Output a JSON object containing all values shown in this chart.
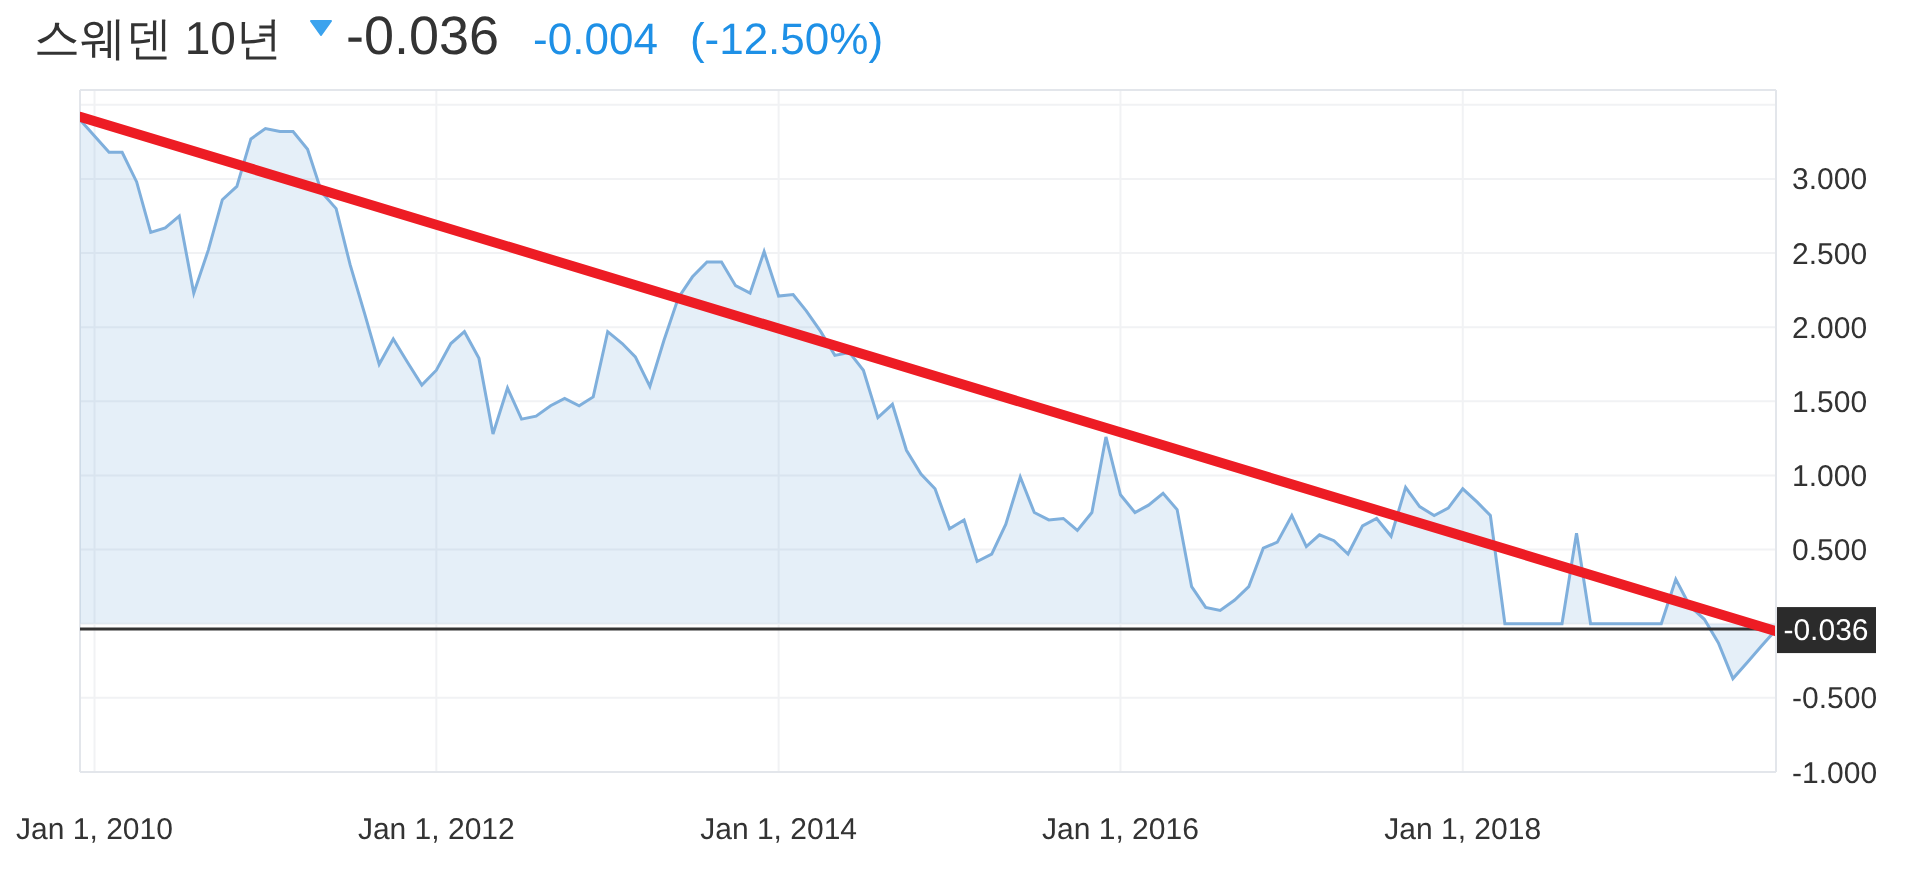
{
  "chart_data": {
    "type": "area",
    "title": "스웨덴 10년",
    "annotations": [
      "-0.036",
      "-0.004",
      "(-12.50%)"
    ],
    "x": [
      "2009-12",
      "2010-01",
      "2010-02",
      "2010-03",
      "2010-04",
      "2010-05",
      "2010-06",
      "2010-07",
      "2010-08",
      "2010-09",
      "2010-10",
      "2010-11",
      "2010-12",
      "2011-01",
      "2011-02",
      "2011-03",
      "2011-04",
      "2011-05",
      "2011-06",
      "2011-07",
      "2011-08",
      "2011-09",
      "2011-10",
      "2011-11",
      "2011-12",
      "2012-01",
      "2012-02",
      "2012-03",
      "2012-04",
      "2012-05",
      "2012-06",
      "2012-07",
      "2012-08",
      "2012-09",
      "2012-10",
      "2012-11",
      "2012-12",
      "2013-01",
      "2013-02",
      "2013-03",
      "2013-04",
      "2013-05",
      "2013-06",
      "2013-07",
      "2013-08",
      "2013-09",
      "2013-10",
      "2013-11",
      "2013-12",
      "2014-01",
      "2014-02",
      "2014-03",
      "2014-04",
      "2014-05",
      "2014-06",
      "2014-07",
      "2014-08",
      "2014-09",
      "2014-10",
      "2014-11",
      "2014-12",
      "2015-01",
      "2015-02",
      "2015-03",
      "2015-04",
      "2015-05",
      "2015-06",
      "2015-07",
      "2015-08",
      "2015-09",
      "2015-10",
      "2015-11",
      "2015-12",
      "2016-01",
      "2016-02",
      "2016-03",
      "2016-04",
      "2016-05",
      "2016-06",
      "2016-07",
      "2016-08",
      "2016-09",
      "2016-10",
      "2016-11",
      "2016-12",
      "2017-01",
      "2017-02",
      "2017-03",
      "2017-04",
      "2017-05",
      "2017-06",
      "2017-07",
      "2017-08",
      "2017-09",
      "2017-10",
      "2017-11",
      "2017-12",
      "2018-01",
      "2018-02",
      "2018-03",
      "2018-04",
      "2018-05",
      "2018-06",
      "2018-07",
      "2018-08",
      "2018-09",
      "2018-10",
      "2018-11",
      "2018-12",
      "2019-01",
      "2019-02",
      "2019-03",
      "2019-04",
      "2019-05",
      "2019-06",
      "2019-07",
      "2019-08",
      "2019-09",
      "2019-10",
      "2019-11"
    ],
    "xlim": [
      "2009-12",
      "2019-11"
    ],
    "xticks": [
      {
        "value": "2010-01-01",
        "label": "Jan 1, 2010"
      },
      {
        "value": "2012-01-01",
        "label": "Jan 1, 2012"
      },
      {
        "value": "2014-01-01",
        "label": "Jan 1, 2014"
      },
      {
        "value": "2016-01-01",
        "label": "Jan 1, 2016"
      },
      {
        "value": "2018-01-01",
        "label": "Jan 1, 2018"
      }
    ],
    "ylim": [
      -1,
      3.6
    ],
    "yticks": [
      {
        "value": -1,
        "label": "-1.000"
      },
      {
        "value": -0.5,
        "label": "-0.500"
      },
      {
        "value": 0,
        "label": null
      },
      {
        "value": 0.5,
        "label": "0.500"
      },
      {
        "value": 1,
        "label": "1.000"
      },
      {
        "value": 1.5,
        "label": "1.500"
      },
      {
        "value": 2,
        "label": "2.000"
      },
      {
        "value": 2.5,
        "label": "2.500"
      },
      {
        "value": 3,
        "label": "3.000"
      },
      {
        "value": 3.5,
        "label": null
      }
    ],
    "grid": true,
    "series": [
      {
        "color": "#7fafdc",
        "values": [
          3.4,
          3.29,
          3.18,
          3.18,
          2.98,
          2.64,
          2.67,
          2.75,
          2.23,
          2.52,
          2.86,
          2.95,
          3.27,
          3.34,
          3.32,
          3.32,
          3.2,
          2.91,
          2.8,
          2.42,
          2.09,
          1.75,
          1.92,
          1.76,
          1.61,
          1.71,
          1.89,
          1.97,
          1.79,
          1.28,
          1.59,
          1.38,
          1.4,
          1.47,
          1.52,
          1.47,
          1.53,
          1.97,
          1.89,
          1.8,
          1.6,
          1.91,
          2.2,
          2.34,
          2.44,
          2.44,
          2.28,
          2.23,
          2.51,
          2.21,
          2.22,
          2.11,
          1.97,
          1.81,
          1.83,
          1.71,
          1.39,
          1.48,
          1.17,
          1.01,
          0.91,
          0.64,
          0.7,
          0.42,
          0.47,
          0.67,
          0.99,
          0.75,
          0.7,
          0.71,
          0.63,
          0.75,
          1.26,
          0.87,
          0.75,
          0.8,
          0.88,
          0.77,
          0.25,
          0.11,
          0.09,
          0.16,
          0.25,
          0.51,
          0.55,
          0.73,
          0.52,
          0.6,
          0.56,
          0.47,
          0.66,
          0.71,
          0.59,
          0.92,
          0.79,
          0.73,
          0.78,
          0.91,
          0.82,
          0.73,
          0,
          0,
          0,
          0,
          0,
          0.61,
          0,
          0,
          0,
          0,
          0,
          0,
          0.3,
          0.12,
          0.03,
          -0.13,
          -0.37,
          -0.26,
          -0.15,
          -0.04
        ]
      },
      {
        "type": "line",
        "color": "#ed1c24",
        "x": [
          "2009-12",
          "2019-11"
        ],
        "values": [
          3.42,
          -0.05
        ]
      }
    ],
    "ref_lines": [
      {
        "axis": "y",
        "value": -0.036,
        "label": "-0.036",
        "color": "#333333"
      }
    ]
  }
}
